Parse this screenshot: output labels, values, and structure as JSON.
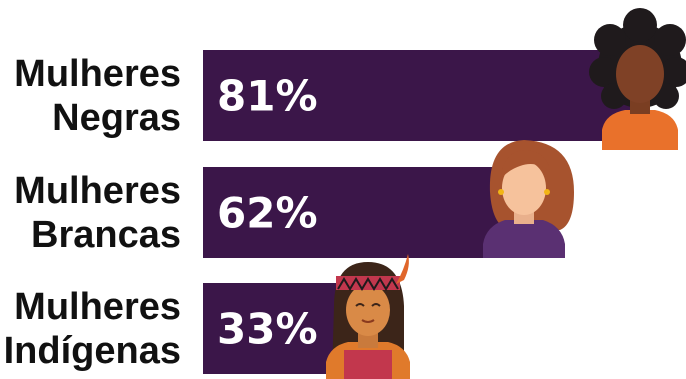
{
  "chart_data": {
    "type": "bar",
    "orientation": "horizontal",
    "categories": [
      [
        "Mulheres",
        "Negras"
      ],
      [
        "Mulheres",
        "Brancas"
      ],
      [
        "Mulheres",
        "Indígenas"
      ]
    ],
    "values": [
      81,
      62,
      33
    ],
    "value_labels": [
      "81%",
      "62%",
      "33%"
    ],
    "unit": "%",
    "xlim": [
      0,
      100
    ],
    "icons": [
      "black-woman-icon",
      "white-woman-icon",
      "indigenous-woman-icon"
    ],
    "title": "",
    "xlabel": "",
    "ylabel": "",
    "grid": false
  },
  "colors": {
    "bar": "#3b1649",
    "label_text": "#111111",
    "value_text": "#ffffff",
    "background": "#ffffff"
  }
}
